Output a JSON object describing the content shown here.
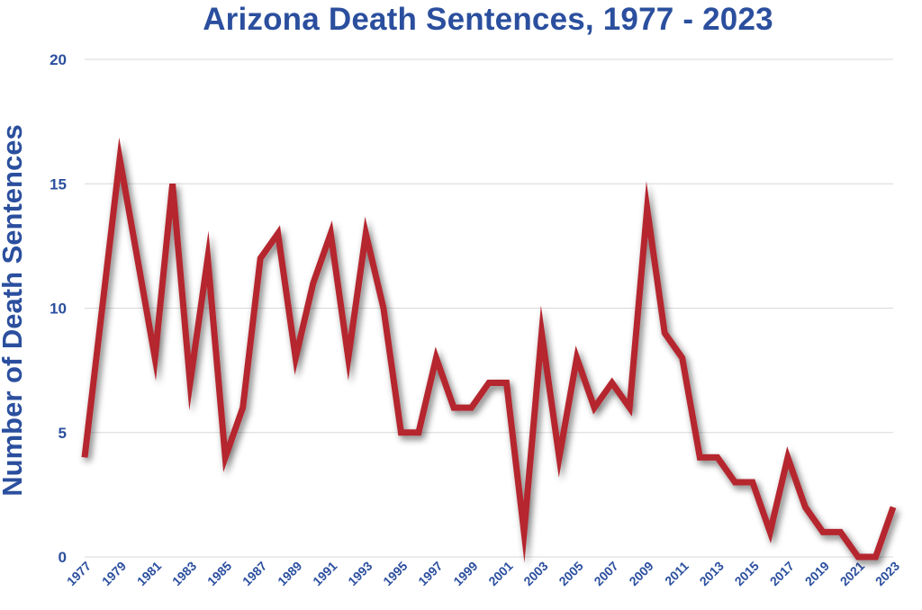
{
  "chart_data": {
    "type": "line",
    "title": "Arizona Death Sentences, 1977 - 2023",
    "xlabel": "",
    "ylabel": "Number of Death Sentences",
    "x": [
      1977,
      1978,
      1979,
      1980,
      1981,
      1982,
      1983,
      1984,
      1985,
      1986,
      1987,
      1988,
      1989,
      1990,
      1991,
      1992,
      1993,
      1994,
      1995,
      1996,
      1997,
      1998,
      1999,
      2000,
      2001,
      2002,
      2003,
      2004,
      2005,
      2006,
      2007,
      2008,
      2009,
      2010,
      2011,
      2012,
      2013,
      2014,
      2015,
      2016,
      2017,
      2018,
      2019,
      2020,
      2021,
      2022,
      2023
    ],
    "series": [
      {
        "values": [
          4,
          10,
          16,
          12,
          8,
          15,
          7,
          12,
          4,
          6,
          12,
          13,
          8,
          11,
          13,
          8,
          13,
          10,
          5,
          5,
          8,
          6,
          6,
          7,
          7,
          1,
          9,
          4,
          8,
          6,
          7,
          6,
          14,
          9,
          8,
          4,
          4,
          3,
          3,
          1,
          4,
          2,
          1,
          1,
          0,
          0,
          2
        ],
        "color": "#b5262f"
      }
    ],
    "xtick_labels": [
      "1977",
      "1979",
      "1981",
      "1983",
      "1985",
      "1987",
      "1989",
      "1991",
      "1993",
      "1995",
      "1997",
      "1999",
      "2001",
      "2003",
      "2005",
      "2007",
      "2009",
      "2011",
      "2013",
      "2015",
      "2017",
      "2019",
      "2021",
      "2023"
    ],
    "ytick_labels": [
      "0",
      "5",
      "10",
      "15",
      "20"
    ],
    "ylim": [
      0,
      20
    ],
    "xlim": [
      1977,
      2023
    ],
    "grid": true,
    "legend": "none"
  },
  "colors": {
    "title": "#2b4f9e",
    "axis_text": "#2b4f9e",
    "line": "#b5262f",
    "gridline": "#d9d9d9"
  }
}
